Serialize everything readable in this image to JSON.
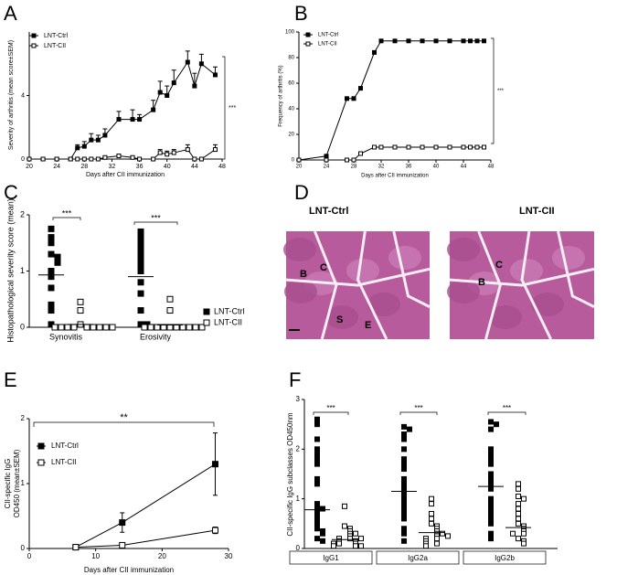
{
  "chart_data": [
    {
      "type": "line",
      "panel": "A",
      "xlabel": "Days after CII immunization",
      "ylabel": "Severity of arthritis (mean score±SEM)",
      "x": [
        20,
        22,
        24,
        26,
        27,
        28,
        29,
        30,
        31,
        33,
        35,
        36,
        38,
        39,
        40,
        41,
        43,
        44,
        45,
        47
      ],
      "xlim": [
        20,
        48
      ],
      "xticks": [
        20,
        24,
        28,
        32,
        36,
        40,
        44,
        48
      ],
      "ylim": [
        0,
        8
      ],
      "yticks": [
        0,
        4
      ],
      "error_bars": "up",
      "series": [
        {
          "name": "LNT-Ctrl",
          "color": "#000000",
          "marker": "filled-square",
          "values": [
            0,
            0,
            0,
            0,
            0.7,
            0.8,
            1.2,
            1.2,
            1.5,
            2.5,
            2.5,
            2.5,
            3.1,
            4.2,
            4.0,
            4.8,
            6.1,
            4.6,
            6.0,
            5.3
          ],
          "errors": [
            0,
            0,
            0,
            0,
            0.2,
            0.3,
            0.4,
            0.3,
            0.4,
            0.5,
            0.6,
            0.3,
            0.6,
            0.7,
            0.6,
            0.8,
            0.7,
            0.8,
            0.6,
            0.5
          ]
        },
        {
          "name": "LNT-CII",
          "color": "#000000",
          "marker": "open-square",
          "values": [
            0,
            0,
            0,
            0,
            0,
            0,
            0,
            0,
            0.1,
            0.2,
            0.1,
            0,
            0,
            0.4,
            0.3,
            0.4,
            0.6,
            0,
            0,
            0.6
          ],
          "errors": [
            0,
            0,
            0,
            0,
            0,
            0,
            0,
            0,
            0.1,
            0.1,
            0.1,
            0,
            0,
            0.2,
            0.2,
            0.2,
            0.3,
            0,
            0,
            0.3
          ]
        }
      ],
      "annotation": "***"
    },
    {
      "type": "line",
      "panel": "B",
      "xlabel": "Days after CII immunization",
      "ylabel": "Frequency of arthritis (%)",
      "x": [
        20,
        24,
        27,
        28,
        29,
        31,
        32,
        34,
        36,
        38,
        40,
        42,
        44,
        45,
        46,
        47
      ],
      "xlim": [
        20,
        48
      ],
      "xticks": [
        20,
        24,
        28,
        32,
        36,
        40,
        44,
        48
      ],
      "ylim": [
        0,
        100
      ],
      "yticks": [
        0,
        20,
        40,
        60,
        80,
        100
      ],
      "series": [
        {
          "name": "LNT-Ctrl",
          "color": "#000000",
          "marker": "filled-square",
          "values": [
            0,
            3,
            48,
            48,
            56,
            84,
            93,
            93,
            93,
            93,
            93,
            93,
            93,
            93,
            93,
            93
          ]
        },
        {
          "name": "LNT-CII",
          "color": "#000000",
          "marker": "open-square",
          "values": [
            0,
            0,
            0,
            0,
            5,
            10,
            10,
            10,
            10,
            10,
            10,
            10,
            10,
            10,
            10,
            10
          ]
        }
      ],
      "annotation": "***"
    },
    {
      "type": "strip",
      "panel": "C",
      "ylabel": "Histopathological severity score (mean)",
      "categories": [
        "Synovitis",
        "Erosivity"
      ],
      "ylim": [
        0,
        2
      ],
      "yticks": [
        0,
        1,
        2
      ],
      "series": [
        {
          "name": "LNT-Ctrl",
          "color": "#000000",
          "marker": "filled-square",
          "values": [
            [
              1.75,
              1.6,
              1.5,
              1.3,
              1.25,
              1.2,
              1.15,
              1.0,
              0.9,
              0.7,
              0.4,
              0.3,
              0.05
            ],
            [
              1.7,
              1.6,
              1.5,
              1.4,
              1.3,
              1.2,
              1.1,
              1.0,
              0.8,
              0.6,
              0.3,
              0.05,
              0.05
            ]
          ],
          "means": [
            0.93,
            0.9
          ]
        },
        {
          "name": "LNT-CII",
          "color": "#000000",
          "marker": "open-square",
          "values": [
            [
              0.45,
              0.3,
              0.05,
              0,
              0,
              0,
              0,
              0,
              0,
              0,
              0,
              0
            ],
            [
              0.5,
              0.3,
              0,
              0,
              0,
              0,
              0,
              0,
              0,
              0,
              0,
              0
            ]
          ],
          "means": [
            0.05,
            0.04
          ]
        }
      ],
      "significance": [
        "***",
        "***"
      ],
      "legend": true
    },
    {
      "type": "image",
      "panel": "D",
      "images": [
        {
          "label": "LNT-Ctrl",
          "regions": [
            "B",
            "C",
            "S",
            "E"
          ]
        },
        {
          "label": "LNT-CII",
          "regions": [
            "C",
            "B"
          ]
        }
      ]
    },
    {
      "type": "line",
      "panel": "E",
      "xlabel": "Days after CII immunization",
      "ylabel": [
        "CII-specific IgG",
        "OD450 (mean±SEM)"
      ],
      "x": [
        7,
        14,
        28
      ],
      "xlim": [
        0,
        30
      ],
      "xticks": [
        0,
        10,
        20,
        30
      ],
      "ylim": [
        0,
        2
      ],
      "yticks": [
        0,
        1,
        2
      ],
      "error_bars": "both",
      "series": [
        {
          "name": "LNT-Ctrl",
          "color": "#000000",
          "marker": "filled-square",
          "values": [
            0.02,
            0.4,
            1.3
          ],
          "errors": [
            0.02,
            0.15,
            0.48
          ]
        },
        {
          "name": "LNT-CII",
          "color": "#000000",
          "marker": "open-square",
          "values": [
            0.02,
            0.05,
            0.28
          ],
          "errors": [
            0.01,
            0.02,
            0.05
          ]
        }
      ],
      "annotation": "**"
    },
    {
      "type": "strip",
      "panel": "F",
      "ylabel": "CII-specific IgG subclasses OD450nm",
      "categories": [
        "IgG1",
        "IgG2a",
        "IgG2b"
      ],
      "ylim": [
        0,
        3
      ],
      "yticks": [
        0,
        1,
        2,
        3
      ],
      "series": [
        {
          "name": "LNT-Ctrl",
          "color": "#000000",
          "marker": "filled-square",
          "values": [
            [
              2.6,
              2.5,
              2.2,
              2.0,
              1.9,
              1.8,
              1.7,
              1.4,
              1.3,
              0.9,
              0.8,
              0.8,
              0.7,
              0.6,
              0.5,
              0.4,
              0.35,
              0.3,
              0.2,
              0.15
            ],
            [
              2.45,
              2.4,
              2.3,
              2.2,
              2.0,
              1.8,
              1.7,
              1.6,
              1.4,
              1.3,
              1.2,
              1.1,
              1.0,
              0.9,
              0.8,
              0.7,
              0.6,
              0.4,
              0.3,
              0.15
            ],
            [
              2.55,
              2.5,
              2.4,
              2.0,
              1.9,
              1.8,
              1.7,
              1.5,
              1.4,
              1.3,
              1.2,
              1.0,
              0.9,
              0.8,
              0.7,
              0.6,
              0.5,
              0.3,
              0.2
            ]
          ],
          "means": [
            0.78,
            1.15,
            1.25
          ]
        },
        {
          "name": "LNT-CII",
          "color": "#000000",
          "marker": "open-square",
          "values": [
            [
              0.85,
              0.45,
              0.4,
              0.35,
              0.3,
              0.25,
              0.2,
              0.2,
              0.15,
              0.15,
              0.1,
              0.1,
              0.1,
              0.05,
              0.05,
              0.05,
              0.2,
              0.3
            ],
            [
              1.0,
              0.9,
              0.7,
              0.6,
              0.5,
              0.45,
              0.4,
              0.35,
              0.3,
              0.25,
              0.2,
              0.2,
              0.15,
              0.1,
              0.1,
              0.05,
              0.3,
              0.25
            ],
            [
              1.3,
              1.2,
              1.05,
              1.0,
              0.9,
              0.8,
              0.7,
              0.6,
              0.5,
              0.45,
              0.4,
              0.35,
              0.3,
              0.2,
              0.15,
              0.1,
              0.3
            ]
          ],
          "means": [
            0.18,
            0.32,
            0.42
          ]
        }
      ],
      "significance": [
        "***",
        "***",
        "***"
      ],
      "legend": false
    }
  ]
}
